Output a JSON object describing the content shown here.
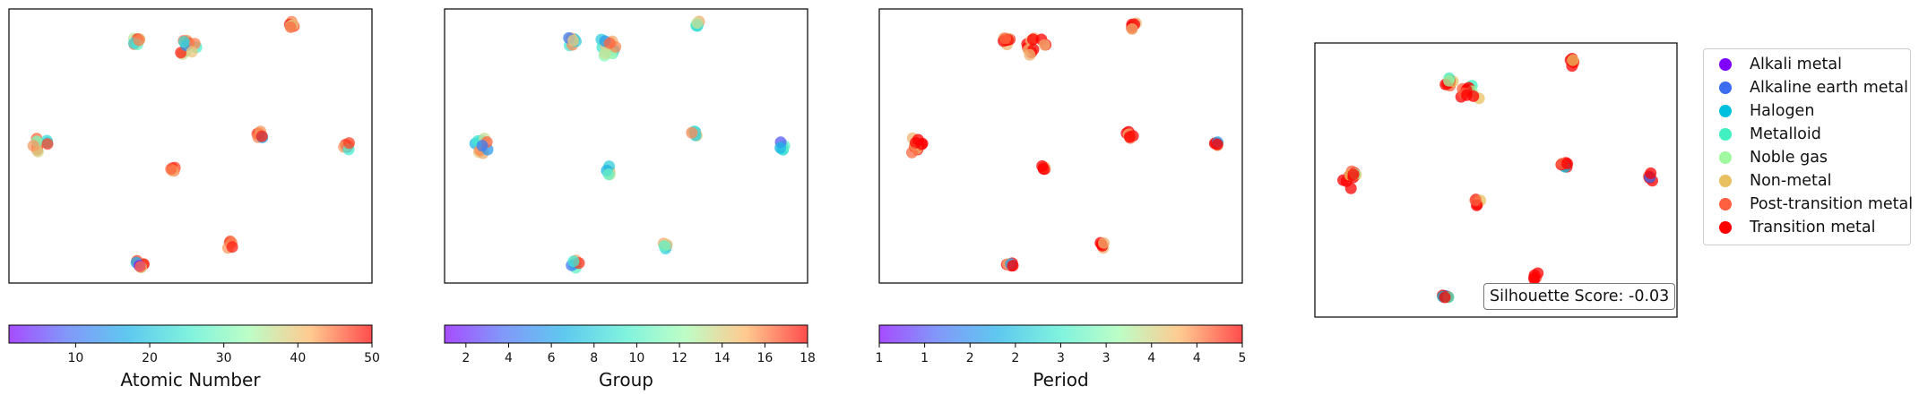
{
  "chart_data": [
    {
      "type": "scatter",
      "panel": "atomic-number",
      "colorbar": {
        "label": "Atomic Number",
        "range": [
          1,
          50
        ],
        "ticks": [
          "10",
          "20",
          "30",
          "40",
          "50"
        ]
      },
      "clusters": [
        {
          "x": 0.49,
          "y": 0.14,
          "spread": [
            0.14,
            0.11
          ],
          "values": [
            22,
            26,
            30,
            34,
            40,
            44,
            46,
            48,
            12,
            20,
            42,
            36
          ]
        },
        {
          "x": 0.35,
          "y": 0.12,
          "spread": [
            0.06,
            0.07
          ],
          "values": [
            28,
            32,
            38,
            44,
            46,
            24,
            20,
            42
          ]
        },
        {
          "x": 0.78,
          "y": 0.06,
          "spread": [
            0.05,
            0.05
          ],
          "values": [
            42,
            46,
            48,
            30,
            36,
            44
          ]
        },
        {
          "x": 0.09,
          "y": 0.5,
          "spread": [
            0.14,
            0.11
          ],
          "values": [
            44,
            46,
            48,
            42,
            34,
            38,
            16,
            20,
            26,
            40,
            46
          ]
        },
        {
          "x": 0.69,
          "y": 0.46,
          "spread": [
            0.06,
            0.05
          ],
          "values": [
            44,
            46,
            42,
            40,
            14,
            48
          ]
        },
        {
          "x": 0.93,
          "y": 0.5,
          "spread": [
            0.05,
            0.06
          ],
          "values": [
            4,
            44,
            48,
            40,
            22,
            46
          ]
        },
        {
          "x": 0.45,
          "y": 0.59,
          "spread": [
            0.05,
            0.06
          ],
          "values": [
            46,
            48,
            42,
            38,
            44
          ]
        },
        {
          "x": 0.61,
          "y": 0.86,
          "spread": [
            0.05,
            0.06
          ],
          "values": [
            44,
            46,
            42,
            40,
            48
          ]
        },
        {
          "x": 0.36,
          "y": 0.93,
          "spread": [
            0.06,
            0.05
          ],
          "values": [
            42,
            46,
            48,
            34,
            14,
            2,
            44
          ]
        }
      ]
    },
    {
      "type": "scatter",
      "panel": "group",
      "colorbar": {
        "label": "Group",
        "range": [
          1,
          18
        ],
        "ticks": [
          "2",
          "4",
          "6",
          "8",
          "10",
          "12",
          "14",
          "16",
          "18"
        ]
      },
      "clusters": [
        {
          "x": 0.44,
          "y": 0.14,
          "spread": [
            0.16,
            0.12
          ],
          "values": [
            6,
            7,
            8,
            9,
            11,
            13,
            14,
            15,
            5,
            10,
            16,
            12
          ]
        },
        {
          "x": 0.35,
          "y": 0.12,
          "spread": [
            0.06,
            0.07
          ],
          "values": [
            6,
            8,
            12,
            14,
            15,
            7,
            4,
            13
          ]
        },
        {
          "x": 0.7,
          "y": 0.06,
          "spread": [
            0.05,
            0.05
          ],
          "values": [
            7,
            9,
            14,
            6,
            8,
            12
          ]
        },
        {
          "x": 0.1,
          "y": 0.5,
          "spread": [
            0.12,
            0.11
          ],
          "values": [
            6,
            7,
            9,
            13,
            14,
            15,
            8,
            5,
            12,
            16,
            4
          ]
        },
        {
          "x": 0.69,
          "y": 0.46,
          "spread": [
            0.06,
            0.05
          ],
          "values": [
            6,
            8,
            14,
            12,
            7,
            15
          ]
        },
        {
          "x": 0.93,
          "y": 0.5,
          "spread": [
            0.05,
            0.06
          ],
          "values": [
            6,
            7,
            8,
            9,
            3,
            6
          ]
        },
        {
          "x": 0.45,
          "y": 0.59,
          "spread": [
            0.05,
            0.06
          ],
          "values": [
            14,
            7,
            12,
            6,
            9
          ]
        },
        {
          "x": 0.61,
          "y": 0.86,
          "spread": [
            0.05,
            0.06
          ],
          "values": [
            6,
            7,
            14,
            13,
            9
          ]
        },
        {
          "x": 0.36,
          "y": 0.93,
          "spread": [
            0.06,
            0.05
          ],
          "values": [
            6,
            7,
            9,
            14,
            4,
            17,
            8
          ]
        }
      ]
    },
    {
      "type": "scatter",
      "panel": "period",
      "colorbar": {
        "label": "Period",
        "range": [
          1,
          5
        ],
        "ticks": [
          "1",
          "1",
          "2",
          "2",
          "3",
          "3",
          "4",
          "4",
          "5"
        ]
      },
      "clusters": [
        {
          "x": 0.43,
          "y": 0.14,
          "spread": [
            0.15,
            0.12
          ],
          "values": [
            5,
            5,
            5,
            4,
            4,
            5,
            4,
            5,
            5,
            4,
            5,
            4
          ]
        },
        {
          "x": 0.35,
          "y": 0.12,
          "spread": [
            0.06,
            0.07
          ],
          "values": [
            4,
            5,
            5,
            4,
            5,
            3.8,
            5,
            4.5
          ]
        },
        {
          "x": 0.7,
          "y": 0.06,
          "spread": [
            0.05,
            0.05
          ],
          "values": [
            5,
            5,
            4,
            5,
            5,
            4
          ]
        },
        {
          "x": 0.1,
          "y": 0.5,
          "spread": [
            0.12,
            0.11
          ],
          "values": [
            5,
            5,
            4,
            5,
            5,
            4,
            3.8,
            5,
            5,
            4.5,
            5
          ]
        },
        {
          "x": 0.69,
          "y": 0.46,
          "spread": [
            0.06,
            0.05
          ],
          "values": [
            5,
            5,
            4,
            5,
            4.5,
            5
          ]
        },
        {
          "x": 0.93,
          "y": 0.5,
          "spread": [
            0.05,
            0.06
          ],
          "values": [
            5,
            5,
            4,
            5,
            2,
            5
          ]
        },
        {
          "x": 0.45,
          "y": 0.59,
          "spread": [
            0.05,
            0.06
          ],
          "values": [
            5,
            5,
            4,
            5,
            5
          ]
        },
        {
          "x": 0.61,
          "y": 0.86,
          "spread": [
            0.05,
            0.06
          ],
          "values": [
            5,
            4,
            5,
            5,
            4
          ]
        },
        {
          "x": 0.36,
          "y": 0.93,
          "spread": [
            0.06,
            0.05
          ],
          "values": [
            5,
            4,
            5,
            5,
            4,
            2,
            5
          ]
        }
      ]
    },
    {
      "type": "scatter",
      "panel": "category",
      "annotation": "Silhouette Score: -0.03",
      "legend": {
        "position": "right",
        "entries": [
          {
            "label": "Alkali metal",
            "color": "#7f00ff"
          },
          {
            "label": "Alkaline earth metal",
            "color": "#3c6cf0"
          },
          {
            "label": "Halogen",
            "color": "#00c0e0"
          },
          {
            "label": "Metalloid",
            "color": "#40f0c0"
          },
          {
            "label": "Noble gas",
            "color": "#a0f8a0"
          },
          {
            "label": "Non-metal",
            "color": "#e8c060"
          },
          {
            "label": "Post-transition metal",
            "color": "#ff6040"
          },
          {
            "label": "Transition metal",
            "color": "#ff0000"
          }
        ]
      },
      "clusters": [
        {
          "x": 0.43,
          "y": 0.19,
          "spread": [
            0.15,
            0.12
          ],
          "values": [
            7,
            7,
            7,
            6,
            3,
            7,
            4,
            5,
            7,
            6,
            7,
            7
          ]
        },
        {
          "x": 0.37,
          "y": 0.14,
          "spread": [
            0.06,
            0.07
          ],
          "values": [
            7,
            6,
            7,
            5,
            7,
            3,
            7,
            4
          ]
        },
        {
          "x": 0.71,
          "y": 0.07,
          "spread": [
            0.05,
            0.05
          ],
          "values": [
            7,
            7,
            6,
            7,
            7,
            5
          ]
        },
        {
          "x": 0.1,
          "y": 0.5,
          "spread": [
            0.12,
            0.11
          ],
          "values": [
            7,
            7,
            5,
            7,
            7,
            6,
            7,
            5,
            7,
            4,
            7
          ]
        },
        {
          "x": 0.69,
          "y": 0.45,
          "spread": [
            0.06,
            0.05
          ],
          "values": [
            7,
            7,
            2,
            7,
            6,
            7
          ]
        },
        {
          "x": 0.93,
          "y": 0.49,
          "spread": [
            0.05,
            0.06
          ],
          "values": [
            7,
            7,
            6,
            7,
            1,
            7
          ]
        },
        {
          "x": 0.45,
          "y": 0.58,
          "spread": [
            0.05,
            0.06
          ],
          "values": [
            7,
            7,
            5,
            7,
            6
          ]
        },
        {
          "x": 0.61,
          "y": 0.85,
          "spread": [
            0.05,
            0.06
          ],
          "values": [
            7,
            6,
            7,
            7,
            7
          ]
        },
        {
          "x": 0.36,
          "y": 0.92,
          "spread": [
            0.06,
            0.05
          ],
          "values": [
            7,
            1,
            7,
            7,
            2,
            3,
            7
          ]
        }
      ]
    }
  ],
  "figure": {
    "colormap": [
      "#8000ff",
      "#4c6cf7",
      "#1ab2e8",
      "#4aeecf",
      "#a0fdaf",
      "#e9c77e",
      "#ff784a",
      "#ff0000"
    ],
    "frame_color": "#000000"
  }
}
